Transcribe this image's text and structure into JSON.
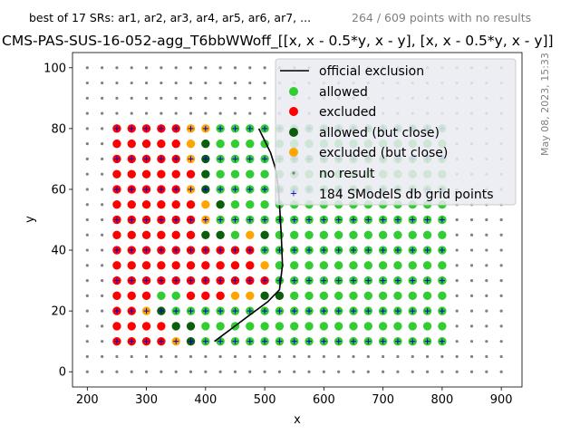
{
  "header": {
    "subtitle_left": "best of 17 SRs: ar1, ar2, ar3, ar4, ar5, ar6, ar7, ...",
    "subtitle_right": "264 / 609 points with no results",
    "title": "CMS-PAS-SUS-16-052-agg_T6bbWWoff_[[x, x - 0.5*y, x - y], [x, x - 0.5*y, x - y]]",
    "date_stamp": "May 08, 2023, 15:33"
  },
  "legend": {
    "official": "official exclusion",
    "allowed": "allowed",
    "excluded": "excluded",
    "allowed_close": "allowed (but close)",
    "excluded_close": "excluded (but close)",
    "no_result": "no result",
    "db_points": "184 SModelS db grid points"
  },
  "colors": {
    "allowed": "#33cc33",
    "excluded": "#ff0000",
    "allowed_close": "#0b5e0b",
    "excluded_close": "#ffa500",
    "no_result": "#808080",
    "db_point": "#0000cc",
    "official_line": "#000000"
  },
  "chart_data": {
    "type": "scatter",
    "xlabel": "x",
    "ylabel": "y",
    "xlim": [
      175,
      935
    ],
    "ylim": [
      -5,
      105
    ],
    "xticks": [
      200,
      300,
      400,
      500,
      600,
      700,
      800,
      900
    ],
    "yticks": [
      0,
      20,
      40,
      60,
      80,
      100
    ],
    "grid": false,
    "legend_position": "top-right",
    "no_result_grid": {
      "x_start": 200,
      "x_end": 900,
      "x_step": 25,
      "y_start": 0,
      "y_end": 100,
      "y_step": 5
    },
    "result_x": [
      250,
      275,
      300,
      325,
      350,
      375,
      400,
      425,
      450,
      475,
      500,
      525,
      550,
      575,
      600,
      625,
      650,
      675,
      700,
      725,
      750,
      775,
      800
    ],
    "result_y": [
      10,
      15,
      20,
      25,
      30,
      35,
      40,
      45,
      50,
      55,
      60,
      65,
      70,
      75,
      80
    ],
    "status_codes": {
      "A": "allowed",
      "E": "excluded",
      "C": "allowed_close",
      "O": "excluded_close"
    },
    "status_rows": [
      {
        "y": 10,
        "codes": "EEEEOCAAAAAAAAAAAAAAAAA"
      },
      {
        "y": 15,
        "codes": "EEEECCAAAAAAAAAAAAAAAAA"
      },
      {
        "y": 20,
        "codes": "EEOCAAAAAAAAAAAAAAAAAAA"
      },
      {
        "y": 25,
        "codes": "EEEAAEEEOOCCAAAAAAAAAAA"
      },
      {
        "y": 30,
        "codes": "EEEEEEEEEEEAAAAAAAAAAAA"
      },
      {
        "y": 35,
        "codes": "EEEEEEEEEEOAAAAAAAAAAAA"
      },
      {
        "y": 40,
        "codes": "EEEEEEEEEEAAAAAAAAAAAAA"
      },
      {
        "y": 45,
        "codes": "EEEEEECCAOCAAAAAAAAAAAA"
      },
      {
        "y": 50,
        "codes": "EEEEEEOAAAAAAAAAAAAAAAA"
      },
      {
        "y": 55,
        "codes": "EEEEEEOCAAAAAAAAAAAAAAA"
      },
      {
        "y": 60,
        "codes": "EEEEEOCAAAAAAAAAAAAAAAA"
      },
      {
        "y": 65,
        "codes": "EEEEEECAAAAAAAAAAAAAAAA"
      },
      {
        "y": 70,
        "codes": "EEEEEOCAAAAAAAAAAAAAAAA"
      },
      {
        "y": 75,
        "codes": "EEEEEOCAAAAAAAAAAAAAAAA"
      },
      {
        "y": 80,
        "codes": "EEEEEOOAAAAAAAAAAAAAAAA"
      }
    ],
    "db_grid": {
      "x_start": 250,
      "x_end": 800,
      "x_step": 25,
      "y_values": [
        10,
        20,
        30,
        40,
        50,
        60,
        70,
        80
      ]
    },
    "official_exclusion": {
      "x": [
        415,
        470,
        505,
        525,
        530,
        528,
        525,
        522,
        518,
        510,
        500,
        490
      ],
      "y": [
        10,
        18,
        23,
        27,
        35,
        45,
        55,
        62,
        67,
        72,
        76,
        80
      ]
    }
  }
}
